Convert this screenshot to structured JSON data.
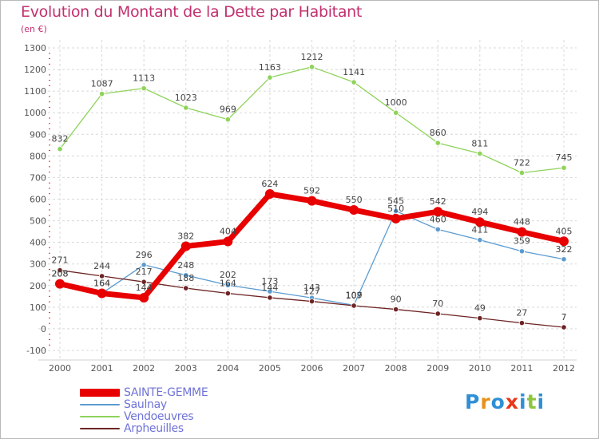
{
  "header": {
    "title": "Evolution du Montant de la Dette par Habitant",
    "subtitle": "(en €)"
  },
  "logo": {
    "text": "Proxiti"
  },
  "chart_data": {
    "type": "line",
    "title": "Evolution du Montant de la Dette par Habitant",
    "subtitle": "(en €)",
    "x": [
      "2000",
      "2001",
      "2002",
      "2003",
      "2004",
      "2005",
      "2006",
      "2007",
      "2008",
      "2009",
      "2010",
      "2011",
      "2012"
    ],
    "ylim": [
      -100,
      1300
    ],
    "yticks": [
      "-100",
      "0",
      "100",
      "200",
      "300",
      "400",
      "500",
      "600",
      "700",
      "800",
      "900",
      "1000",
      "1100",
      "1200",
      "1300"
    ],
    "grid": true,
    "legend_position": "bottom-left",
    "series": [
      {
        "name": "SAINTE-GEMME",
        "color": "#e80000",
        "values": [
          208,
          164,
          144,
          382,
          404,
          624,
          592,
          550,
          510,
          542,
          494,
          448,
          405
        ],
        "labels": [
          "208",
          "164",
          "144",
          "382",
          "404",
          "624",
          "592",
          "550",
          "510",
          "542",
          "494",
          "448",
          "405"
        ]
      },
      {
        "name": "Saulnay",
        "color": "#5b9bd0",
        "values": [
          208,
          164,
          296,
          248,
          202,
          173,
          143,
          109,
          545,
          460,
          411,
          359,
          322
        ],
        "labels": [
          "208",
          "164",
          "296",
          "248",
          "202",
          "173",
          "143",
          "109",
          "545",
          "460",
          "411",
          "359",
          "322"
        ]
      },
      {
        "name": "Vendoeuvres",
        "color": "#8fd35a",
        "values": [
          832,
          1087,
          1113,
          1023,
          969,
          1163,
          1212,
          1141,
          1000,
          860,
          811,
          722,
          745
        ],
        "labels": [
          "832",
          "1087",
          "1113",
          "1023",
          "969",
          "1163",
          "1212",
          "1141",
          "1000",
          "860",
          "811",
          "722",
          "745"
        ]
      },
      {
        "name": "Arpheuilles",
        "color": "#6e2424",
        "values": [
          271,
          244,
          217,
          188,
          164,
          144,
          127,
          107,
          90,
          70,
          49,
          27,
          7
        ],
        "labels": [
          "271",
          "244",
          "217",
          "188",
          "164",
          "144",
          "127",
          "107",
          "90",
          "70",
          "49",
          "27",
          "7"
        ]
      }
    ]
  }
}
